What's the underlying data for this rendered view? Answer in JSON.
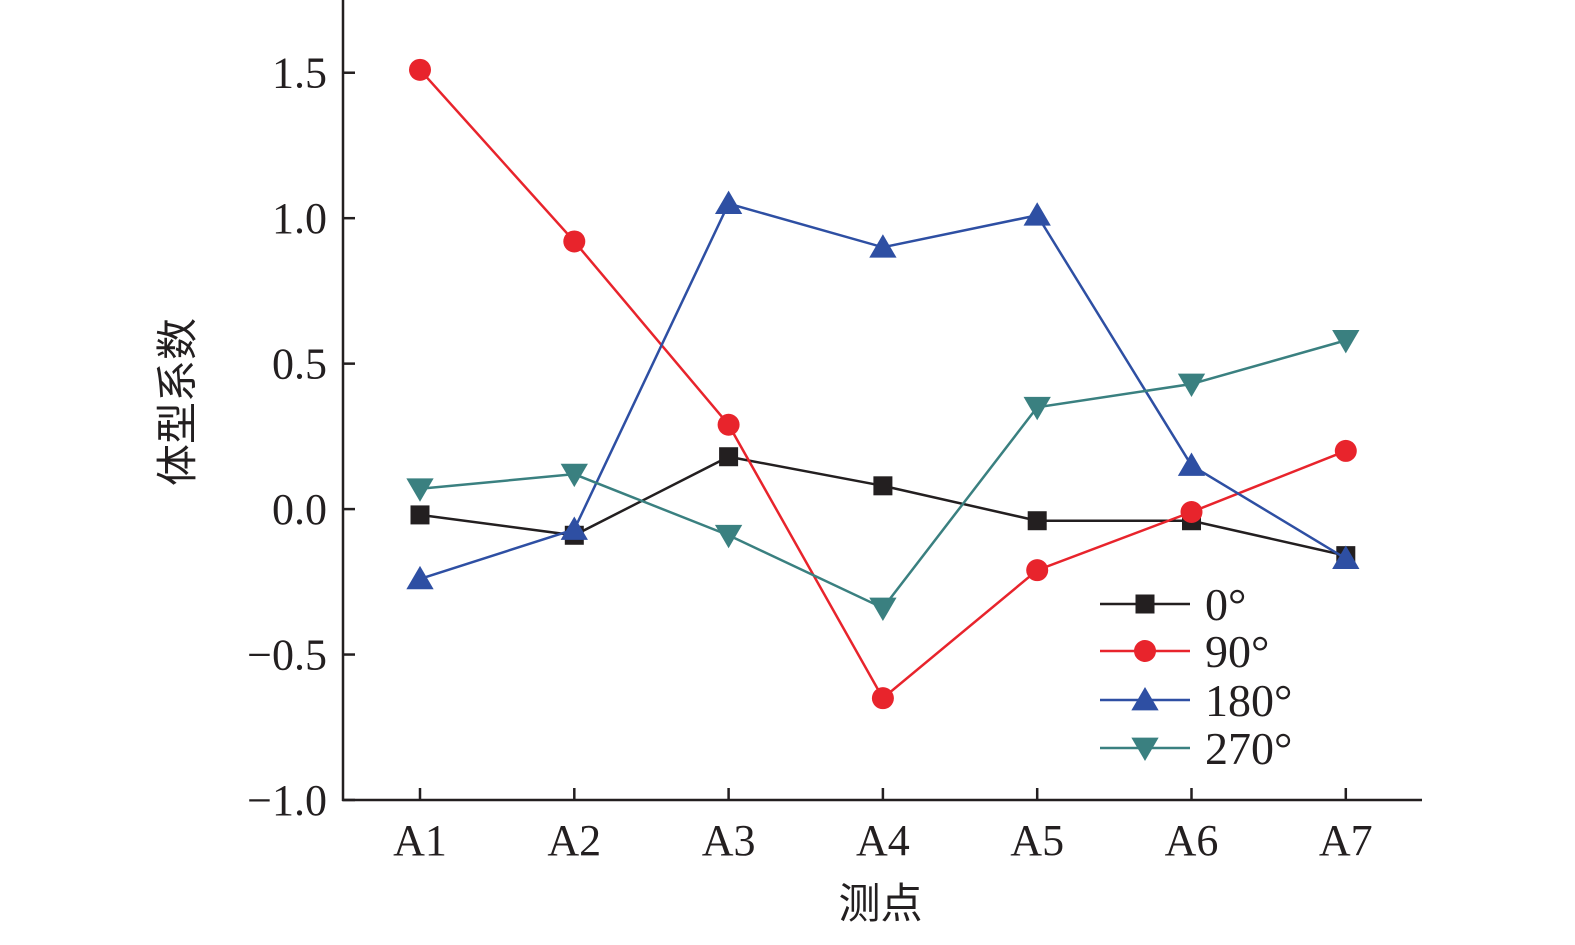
{
  "chart_data": {
    "type": "line",
    "xlabel": "测点",
    "ylabel": "体型系数",
    "categories": [
      "A1",
      "A2",
      "A3",
      "A4",
      "A5",
      "A6",
      "A7"
    ],
    "ylim": [
      -1.0,
      1.75
    ],
    "yticks": [
      -1.0,
      -0.5,
      0.0,
      0.5,
      1.0,
      1.5
    ],
    "ytick_labels": [
      "−1.0",
      "−0.5",
      "0.0",
      "0.5",
      "1.0",
      "1.5"
    ],
    "grid": false,
    "legend_position": "bottom-right",
    "series": [
      {
        "name": "0°",
        "marker": "square",
        "color": "#231f20",
        "values": [
          -0.02,
          -0.09,
          0.18,
          0.08,
          -0.04,
          -0.04,
          -0.16
        ]
      },
      {
        "name": "90°",
        "marker": "circle",
        "color": "#e8242c",
        "values": [
          1.51,
          0.92,
          0.29,
          -0.65,
          -0.21,
          -0.01,
          0.2
        ]
      },
      {
        "name": "180°",
        "marker": "triangle-up",
        "color": "#2e4fa3",
        "values": [
          -0.24,
          -0.07,
          1.05,
          0.9,
          1.01,
          0.15,
          -0.17
        ]
      },
      {
        "name": "270°",
        "marker": "triangle-down",
        "color": "#3a8080",
        "values": [
          0.07,
          0.12,
          -0.09,
          -0.34,
          0.35,
          0.43,
          0.58
        ]
      }
    ]
  }
}
